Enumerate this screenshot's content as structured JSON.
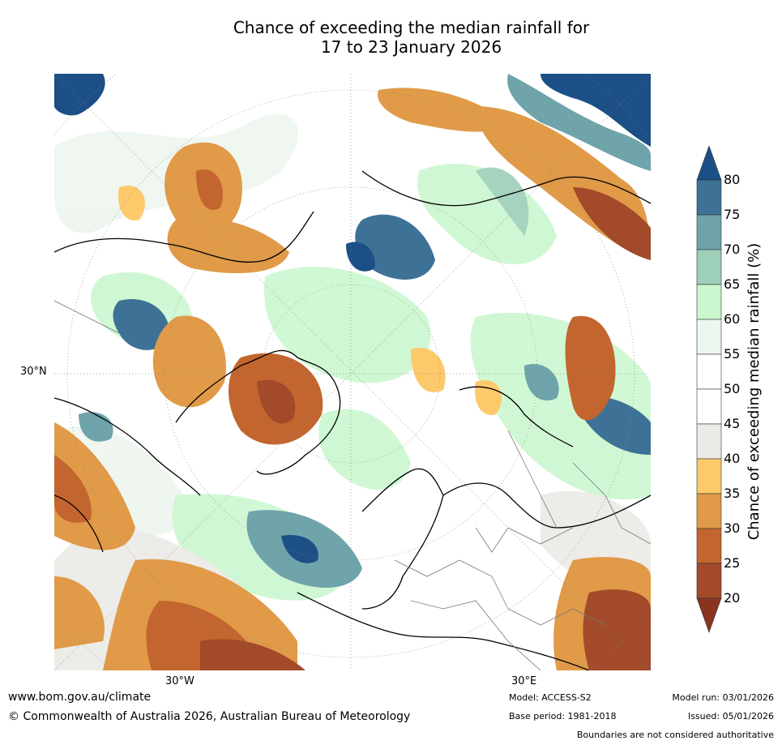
{
  "title": {
    "line1": "Chance of exceeding the median rainfall for",
    "line2": "17 to 23 January 2026"
  },
  "map": {
    "labels": {
      "lat_30n": "30°N",
      "lon_30w": "30°W",
      "lon_30e": "30°E"
    }
  },
  "colorbar": {
    "label": "Chance of exceeding median rainfall (%)",
    "ticks": [
      "80",
      "75",
      "70",
      "65",
      "60",
      "55",
      "50",
      "45",
      "40",
      "35",
      "30",
      "25",
      "20"
    ],
    "bins": [
      {
        "range": ">80",
        "color": "#1b4f86"
      },
      {
        "range": "75-80",
        "color": "#3d7296"
      },
      {
        "range": "70-75",
        "color": "#6ea4aa"
      },
      {
        "range": "65-70",
        "color": "#9dcfb9"
      },
      {
        "range": "60-65",
        "color": "#cbf7cf"
      },
      {
        "range": "55-60",
        "color": "#edf6ee"
      },
      {
        "range": "50-55",
        "color": "#ffffff"
      },
      {
        "range": "45-50",
        "color": "#ffffff"
      },
      {
        "range": "40-45",
        "color": "#eceae6"
      },
      {
        "range": "35-40",
        "color": "#fdc96b"
      },
      {
        "range": "30-35",
        "color": "#e09a48"
      },
      {
        "range": "25-30",
        "color": "#c3652f"
      },
      {
        "range": "20-25",
        "color": "#a24a2a"
      },
      {
        "range": "<20",
        "color": "#8a3420"
      }
    ]
  },
  "footer": {
    "website": "www.bom.gov.au/climate",
    "copyright": "© Commonwealth of Australia 2026, Australian Bureau of Meteorology",
    "model": "Model: ACCESS-S2",
    "base_period": "Base period: 1981-2018",
    "model_run": "Model run: 03/01/2026",
    "issued": "Issued: 05/01/2026",
    "disclaimer": "Boundaries are not considered authoritative"
  }
}
